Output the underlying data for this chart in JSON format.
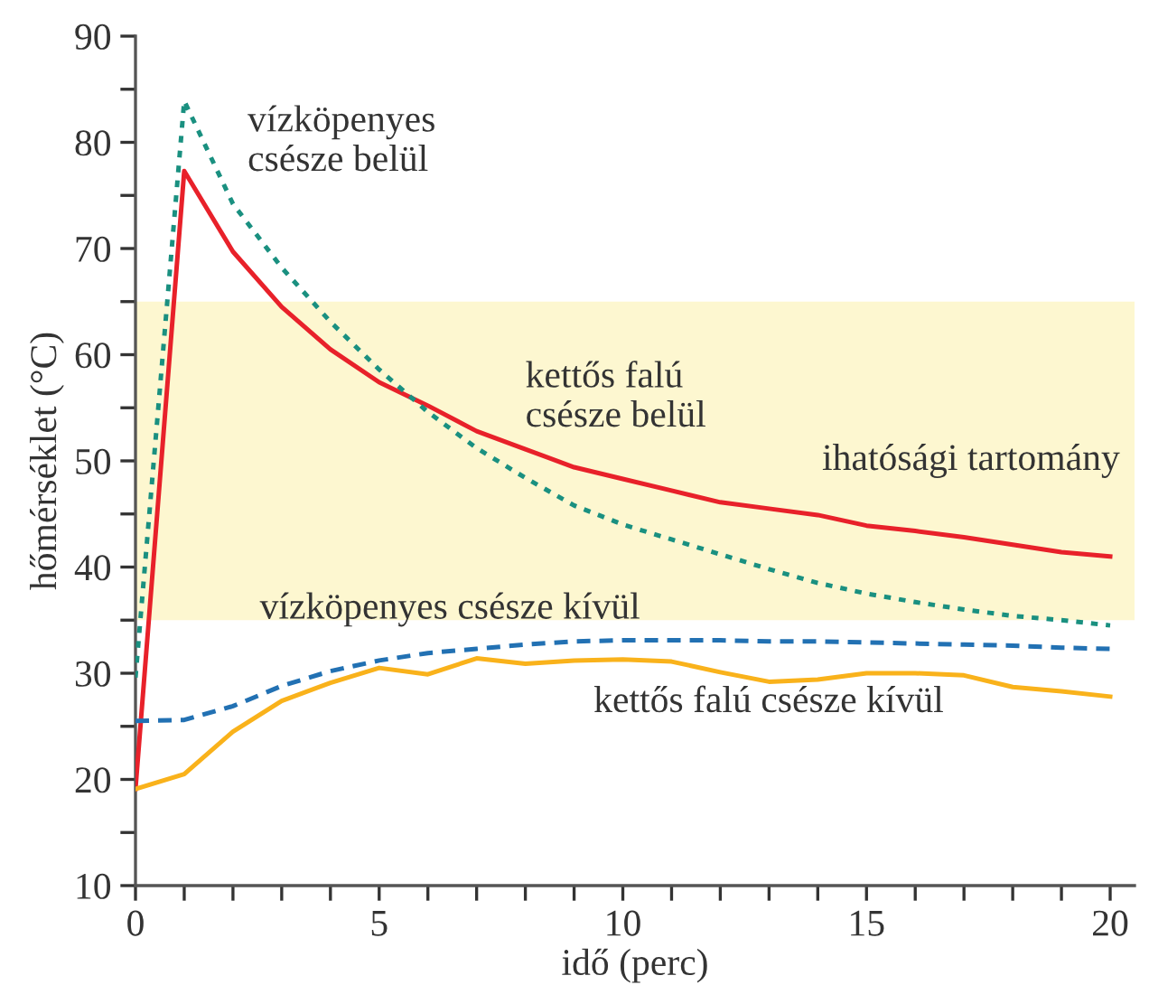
{
  "chart_data": {
    "type": "line",
    "xlabel": "idő (perc)",
    "ylabel": "hőmérséklet (°C)",
    "x": [
      0,
      1,
      2,
      3,
      4,
      5,
      6,
      7,
      8,
      9,
      10,
      11,
      12,
      13,
      14,
      15,
      16,
      17,
      18,
      19,
      20
    ],
    "xlim": [
      0,
      20.5
    ],
    "ylim": [
      10,
      90
    ],
    "xticks": [
      0,
      {
        "value": 1,
        "label": null
      },
      {
        "value": 2,
        "label": null
      },
      {
        "value": 3,
        "label": null
      },
      {
        "value": 4,
        "label": null
      },
      5,
      {
        "value": 6,
        "label": null
      },
      {
        "value": 7,
        "label": null
      },
      {
        "value": 8,
        "label": null
      },
      {
        "value": 9,
        "label": null
      },
      10,
      {
        "value": 11,
        "label": null
      },
      {
        "value": 12,
        "label": null
      },
      {
        "value": 13,
        "label": null
      },
      {
        "value": 14,
        "label": null
      },
      15,
      {
        "value": 16,
        "label": null
      },
      {
        "value": 17,
        "label": null
      },
      {
        "value": 18,
        "label": null
      },
      {
        "value": 19,
        "label": null
      },
      20
    ],
    "yticks": [
      10,
      {
        "value": 15,
        "label": null
      },
      20,
      {
        "value": 25,
        "label": null
      },
      30,
      {
        "value": 35,
        "label": null
      },
      40,
      {
        "value": 45,
        "label": null
      },
      50,
      {
        "value": 55,
        "label": null
      },
      60,
      {
        "value": 65,
        "label": null
      },
      70,
      {
        "value": 75,
        "label": null
      },
      80,
      {
        "value": 85,
        "label": null
      },
      90
    ],
    "series": [
      {
        "name": "kettős falú\ncsésze belül",
        "color": "#e8212a",
        "line_style": "solid",
        "values": [
          19.1,
          77.3,
          69.7,
          64.5,
          60.5,
          57.4,
          55.2,
          52.8,
          51.1,
          49.4,
          48.3,
          47.2,
          46.1,
          45.5,
          44.9,
          43.9,
          43.4,
          42.8,
          42.1,
          41.4,
          41.0
        ]
      },
      {
        "name": "vízköpenyes\ncsésze belül",
        "color": "#1a9080",
        "line_style": "dotted",
        "values": [
          29.6,
          83.9,
          74.2,
          68.2,
          63.1,
          58.6,
          54.6,
          51.2,
          48.4,
          45.8,
          44.0,
          42.6,
          41.2,
          39.8,
          38.5,
          37.5,
          36.7,
          36.0,
          35.4,
          35.0,
          34.5
        ]
      },
      {
        "name": "vízköpenyes csésze kívül",
        "color": "#2271b3",
        "line_style": "dashed",
        "values": [
          25.5,
          25.6,
          26.9,
          28.8,
          30.2,
          31.2,
          31.9,
          32.3,
          32.7,
          33.0,
          33.1,
          33.1,
          33.1,
          33.0,
          33.0,
          32.9,
          32.8,
          32.7,
          32.6,
          32.4,
          32.3
        ]
      },
      {
        "name": "kettős falú csésze kívül",
        "color": "#f9b21b",
        "line_style": "solid",
        "values": [
          19.1,
          20.5,
          24.5,
          27.4,
          29.1,
          30.5,
          29.9,
          31.4,
          30.9,
          31.2,
          31.3,
          31.1,
          30.1,
          29.2,
          29.4,
          30.0,
          30.0,
          29.8,
          28.7,
          28.3,
          27.8
        ]
      }
    ],
    "bands": [
      {
        "axis": "y",
        "from": 35,
        "to": 65,
        "label": "ihatósági tartomány",
        "color": "#fdf7d0"
      }
    ],
    "legend": false,
    "grid": false,
    "marker": "none"
  }
}
